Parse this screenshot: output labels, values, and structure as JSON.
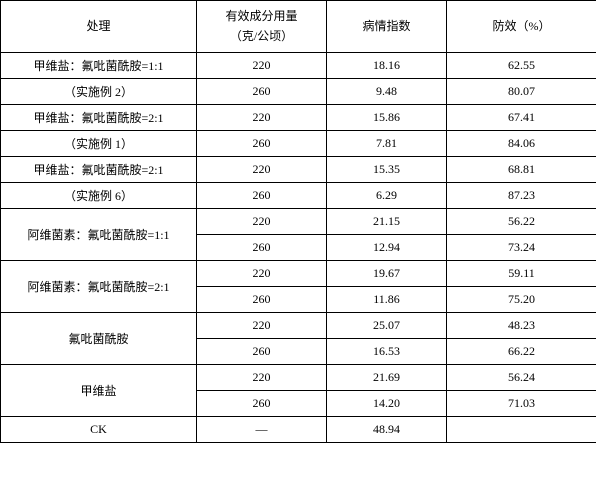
{
  "header": {
    "treatment": "处理",
    "dose_line1": "有效成分用量",
    "dose_line2": "（克/公顷）",
    "index": "病情指数",
    "effect": "防效（%）"
  },
  "rows": [
    {
      "treatment_line1": "甲维盐：氟吡菌酰胺=1:1",
      "treatment_line2": "（实施例 2）",
      "doses": [
        "220",
        "260"
      ],
      "indexes": [
        "18.16",
        "9.48"
      ],
      "effects": [
        "62.55",
        "80.07"
      ]
    },
    {
      "treatment_line1": "甲维盐：氟吡菌酰胺=2:1",
      "treatment_line2": "（实施例 1）",
      "doses": [
        "220",
        "260"
      ],
      "indexes": [
        "15.86",
        "7.81"
      ],
      "effects": [
        "67.41",
        "84.06"
      ]
    },
    {
      "treatment_line1": "甲维盐：氟吡菌酰胺=2:1",
      "treatment_line2": "（实施例 6）",
      "doses": [
        "220",
        "260"
      ],
      "indexes": [
        "15.35",
        "6.29"
      ],
      "effects": [
        "68.81",
        "87.23"
      ]
    },
    {
      "treatment_line1": "阿维菌素：氟吡菌酰胺=1:1",
      "treatment_line2": "",
      "doses": [
        "220",
        "260"
      ],
      "indexes": [
        "21.15",
        "12.94"
      ],
      "effects": [
        "56.22",
        "73.24"
      ]
    },
    {
      "treatment_line1": "阿维菌素：氟吡菌酰胺=2:1",
      "treatment_line2": "",
      "doses": [
        "220",
        "260"
      ],
      "indexes": [
        "19.67",
        "11.86"
      ],
      "effects": [
        "59.11",
        "75.20"
      ]
    },
    {
      "treatment_line1": "氟吡菌酰胺",
      "treatment_line2": "",
      "doses": [
        "220",
        "260"
      ],
      "indexes": [
        "25.07",
        "16.53"
      ],
      "effects": [
        "48.23",
        "66.22"
      ]
    },
    {
      "treatment_line1": "甲维盐",
      "treatment_line2": "",
      "doses": [
        "220",
        "260"
      ],
      "indexes": [
        "21.69",
        "14.20"
      ],
      "effects": [
        "56.24",
        "71.03"
      ]
    }
  ],
  "ck": {
    "label": "CK",
    "dose": "—",
    "index": "48.94",
    "effect": ""
  }
}
